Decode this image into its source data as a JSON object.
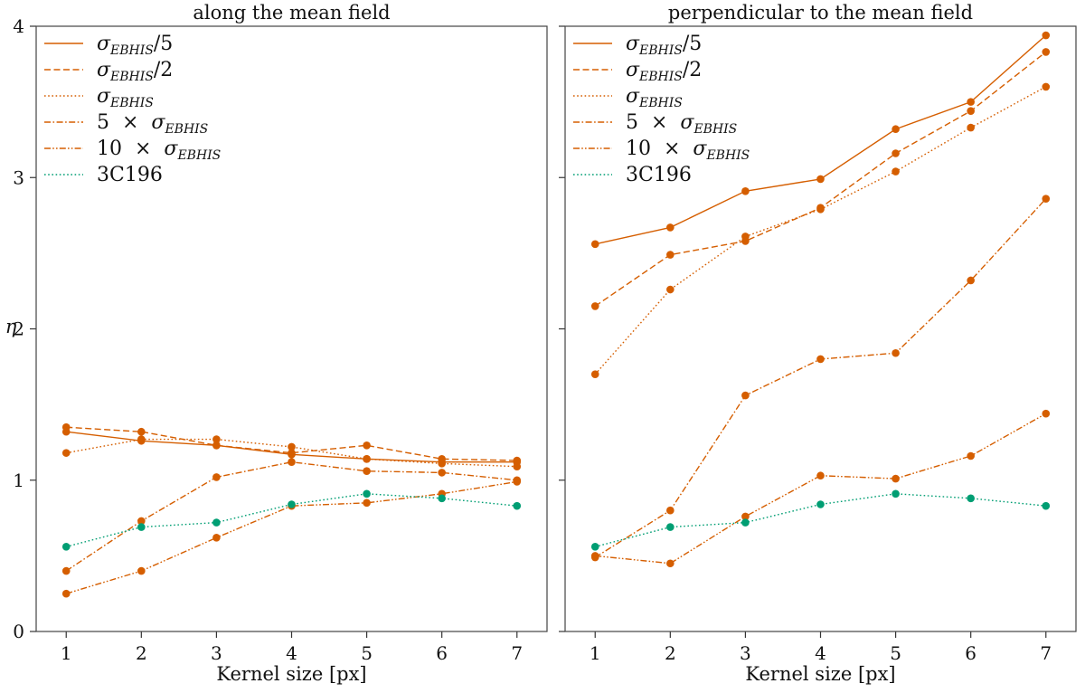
{
  "chart_data": [
    {
      "type": "line",
      "title": "along the mean field",
      "xlabel": "Kernel size [px]",
      "ylabel": "η",
      "x": [
        1,
        2,
        3,
        4,
        5,
        6,
        7
      ],
      "xlim": [
        0.6,
        7.4
      ],
      "ylim": [
        0,
        4
      ],
      "xticks": [
        1,
        2,
        3,
        4,
        5,
        6,
        7
      ],
      "yticks": [
        0,
        1,
        2,
        3,
        4
      ],
      "grid": false,
      "legend_placement": "top-left",
      "series": [
        {
          "name": "σEBHIS/5",
          "label": {
            "sym": "σ",
            "sub": "EBHIS",
            "pre": "",
            "post": "/5"
          },
          "color": "#d55e00",
          "linestyle": "solid",
          "values": [
            1.32,
            1.26,
            1.23,
            1.17,
            1.14,
            1.12,
            1.12
          ]
        },
        {
          "name": "σEBHIS/2",
          "label": {
            "sym": "σ",
            "sub": "EBHIS",
            "pre": "",
            "post": "/2"
          },
          "color": "#d55e00",
          "linestyle": "dashed",
          "values": [
            1.35,
            1.32,
            1.23,
            1.18,
            1.23,
            1.14,
            1.13
          ]
        },
        {
          "name": "σEBHIS",
          "label": {
            "sym": "σ",
            "sub": "EBHIS",
            "pre": "",
            "post": ""
          },
          "color": "#d55e00",
          "linestyle": "dotted",
          "values": [
            1.18,
            1.27,
            1.27,
            1.22,
            1.14,
            1.11,
            1.09
          ]
        },
        {
          "name": "5 × σEBHIS",
          "label": {
            "sym": "σ",
            "sub": "EBHIS",
            "pre": "5  ×  ",
            "post": ""
          },
          "color": "#d55e00",
          "linestyle": "dashdot",
          "values": [
            0.4,
            0.73,
            1.02,
            1.12,
            1.06,
            1.05,
            1.0
          ]
        },
        {
          "name": "10 × σEBHIS",
          "label": {
            "sym": "σ",
            "sub": "EBHIS",
            "pre": "10  ×  ",
            "post": ""
          },
          "color": "#d55e00",
          "linestyle": "dashdotdot",
          "values": [
            0.25,
            0.4,
            0.62,
            0.83,
            0.85,
            0.91,
            0.99
          ]
        },
        {
          "name": "3C196",
          "label": {
            "sym": "",
            "sub": "",
            "pre": "3C196",
            "post": ""
          },
          "color": "#009e73",
          "linestyle": "dotted",
          "values": [
            0.56,
            0.69,
            0.72,
            0.84,
            0.91,
            0.88,
            0.83
          ]
        }
      ]
    },
    {
      "type": "line",
      "title": "perpendicular to the mean field",
      "xlabel": "Kernel size [px]",
      "ylabel": "",
      "x": [
        1,
        2,
        3,
        4,
        5,
        6,
        7
      ],
      "xlim": [
        0.6,
        7.4
      ],
      "ylim": [
        0,
        4
      ],
      "xticks": [
        1,
        2,
        3,
        4,
        5,
        6,
        7
      ],
      "yticks": [
        0,
        1,
        2,
        3,
        4
      ],
      "grid": false,
      "legend_placement": "top-left",
      "series": [
        {
          "name": "σEBHIS/5",
          "label": {
            "sym": "σ",
            "sub": "EBHIS",
            "pre": "",
            "post": "/5"
          },
          "color": "#d55e00",
          "linestyle": "solid",
          "values": [
            2.56,
            2.67,
            2.91,
            2.99,
            3.32,
            3.5,
            3.94
          ]
        },
        {
          "name": "σEBHIS/2",
          "label": {
            "sym": "σ",
            "sub": "EBHIS",
            "pre": "",
            "post": "/2"
          },
          "color": "#d55e00",
          "linestyle": "dashed",
          "values": [
            2.15,
            2.49,
            2.58,
            2.8,
            3.16,
            3.44,
            3.83
          ]
        },
        {
          "name": "σEBHIS",
          "label": {
            "sym": "σ",
            "sub": "EBHIS",
            "pre": "",
            "post": ""
          },
          "color": "#d55e00",
          "linestyle": "dotted",
          "values": [
            1.7,
            2.26,
            2.61,
            2.79,
            3.04,
            3.33,
            3.6
          ]
        },
        {
          "name": "5 × σEBHIS",
          "label": {
            "sym": "σ",
            "sub": "EBHIS",
            "pre": "5  ×  ",
            "post": ""
          },
          "color": "#d55e00",
          "linestyle": "dashdot",
          "values": [
            0.49,
            0.8,
            1.56,
            1.8,
            1.84,
            2.32,
            2.86
          ]
        },
        {
          "name": "10 × σEBHIS",
          "label": {
            "sym": "σ",
            "sub": "EBHIS",
            "pre": "10  ×  ",
            "post": ""
          },
          "color": "#d55e00",
          "linestyle": "dashdotdot",
          "values": [
            0.5,
            0.45,
            0.76,
            1.03,
            1.01,
            1.16,
            1.44
          ]
        },
        {
          "name": "3C196",
          "label": {
            "sym": "",
            "sub": "",
            "pre": "3C196",
            "post": ""
          },
          "color": "#009e73",
          "linestyle": "dotted",
          "values": [
            0.56,
            0.69,
            0.72,
            0.84,
            0.91,
            0.88,
            0.83
          ]
        }
      ]
    }
  ]
}
